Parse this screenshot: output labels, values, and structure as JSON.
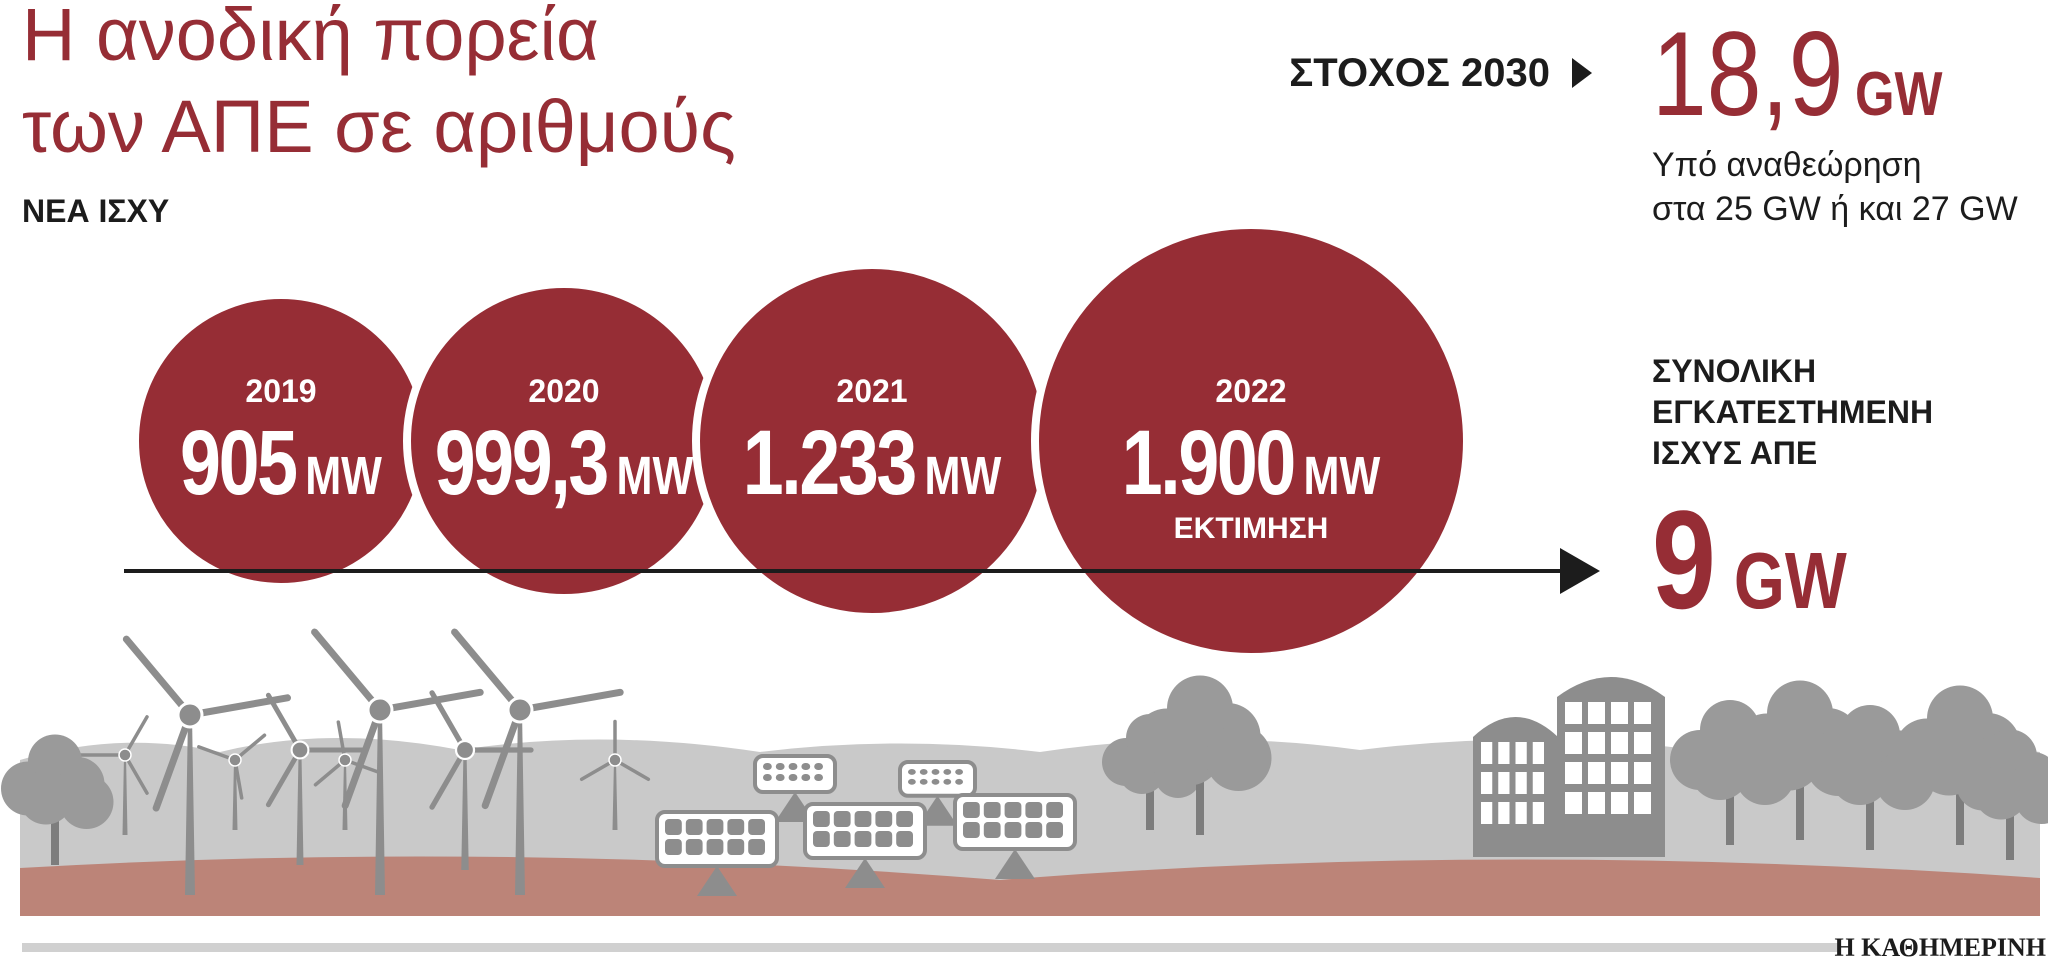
{
  "title": {
    "line1": "Η ανοδική πορεία",
    "line2": "των ΑΠΕ σε αριθμούς"
  },
  "subtitle": "ΝΕΑ ΙΣΧΥ",
  "target": {
    "label": "ΣΤΟΧΟΣ 2030",
    "value": "18,9",
    "unit": "GW",
    "note": [
      "Υπό αναθεώρηση",
      "στα 25 GW ή και 27 GW"
    ]
  },
  "years": [
    {
      "year": "2019",
      "value": "905",
      "unit": "MW"
    },
    {
      "year": "2020",
      "value": "999,3",
      "unit": "MW"
    },
    {
      "year": "2021",
      "value": "1.233",
      "unit": "MW"
    },
    {
      "year": "2022",
      "value": "1.900",
      "unit": "MW",
      "note": "ΕΚΤΙΜΗΣΗ"
    }
  ],
  "total": {
    "label": [
      "ΣΥΝΟΛΙΚΗ",
      "ΕΓΚΑΤΕΣΤΗΜΕΝΗ",
      "ΙΣΧΥΣ ΑΠΕ"
    ],
    "value": "9",
    "unit": "GW"
  },
  "source": "Η ΚΑΘΗΜΕΡΙΝΗ"
}
